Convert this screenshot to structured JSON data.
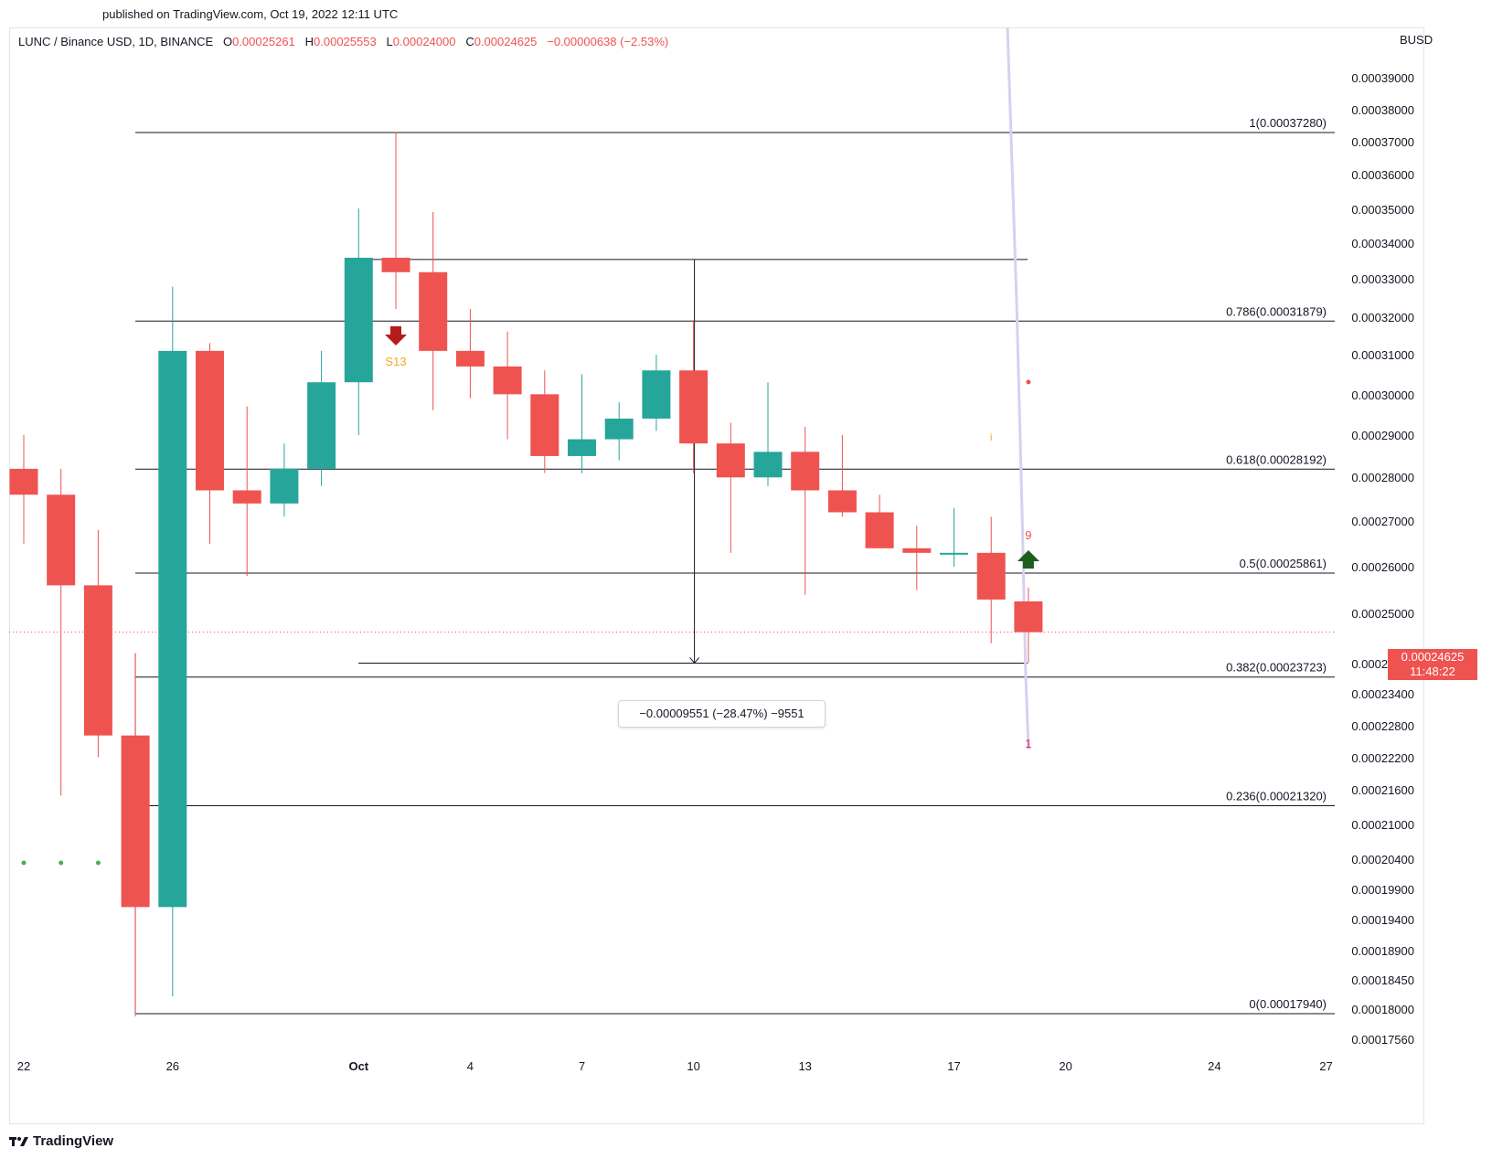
{
  "header": {
    "published": "published on TradingView.com, Oct 19, 2022 12:11 UTC",
    "symbol": "LUNC / Binance USD, 1D, BINANCE",
    "ohlc": {
      "o_label": "O",
      "o": "0.00025261",
      "h_label": "H",
      "h": "0.00025553",
      "l_label": "L",
      "l": "0.00024000",
      "c_label": "C",
      "c": "0.00024625",
      "change": "−0.00000638 (−2.53%)"
    },
    "currency": "BUSD"
  },
  "footer": {
    "brand": "TradingView"
  },
  "price_tag": {
    "price": "0.00024625",
    "countdown": "11:48:22"
  },
  "measure": {
    "label": "−0.00009551 (−28.47%) −9551"
  },
  "markers": {
    "sell_label": "S13",
    "count_9": "9",
    "count_1": "1",
    "count_i": "i"
  },
  "colors": {
    "up": "#26a69a",
    "down": "#ef5350",
    "fib_line": "#131722",
    "dot": "#4caf50",
    "sell_arrow": "#b71c1c",
    "buy_arrow": "#1b5e20",
    "orange": "#f5a623",
    "lavender": "#d8d0f0"
  },
  "chart_data": {
    "type": "candlestick",
    "y_scale": "log",
    "y_ticks": [
      "0.00039000",
      "0.00038000",
      "0.00037000",
      "0.00036000",
      "0.00035000",
      "0.00034000",
      "0.00033000",
      "0.00032000",
      "0.00031000",
      "0.00030000",
      "0.00029000",
      "0.00028000",
      "0.00027000",
      "0.00026000",
      "0.00025000",
      "0.00024000",
      "0.00023400",
      "0.00022800",
      "0.00022200",
      "0.00021600",
      "0.00021000",
      "0.00020400",
      "0.00019900",
      "0.00019400",
      "0.00018900",
      "0.00018450",
      "0.00018000",
      "0.00017560"
    ],
    "x_ticks": [
      {
        "label": "22",
        "date": "2022-09-22"
      },
      {
        "label": "26",
        "date": "2022-09-26"
      },
      {
        "label": "Oct",
        "date": "2022-10-01"
      },
      {
        "label": "4",
        "date": "2022-10-04"
      },
      {
        "label": "7",
        "date": "2022-10-07"
      },
      {
        "label": "10",
        "date": "2022-10-10"
      },
      {
        "label": "13",
        "date": "2022-10-13"
      },
      {
        "label": "17",
        "date": "2022-10-17"
      },
      {
        "label": "20",
        "date": "2022-10-20"
      },
      {
        "label": "24",
        "date": "2022-10-24"
      },
      {
        "label": "27",
        "date": "2022-10-27"
      }
    ],
    "candles": [
      {
        "date": "2022-09-22",
        "o": 0.000282,
        "h": 0.00029,
        "l": 0.000265,
        "c": 0.000276
      },
      {
        "date": "2022-09-23",
        "o": 0.000276,
        "h": 0.000282,
        "l": 0.000215,
        "c": 0.000256
      },
      {
        "date": "2022-09-24",
        "o": 0.000256,
        "h": 0.000268,
        "l": 0.000222,
        "c": 0.000226
      },
      {
        "date": "2022-09-25",
        "o": 0.000226,
        "h": 0.000242,
        "l": 0.000179,
        "c": 0.000196
      },
      {
        "date": "2022-09-26",
        "o": 0.000196,
        "h": 0.000328,
        "l": 0.000182,
        "c": 0.000311
      },
      {
        "date": "2022-09-27",
        "o": 0.000311,
        "h": 0.000313,
        "l": 0.000265,
        "c": 0.000277
      },
      {
        "date": "2022-09-28",
        "o": 0.000277,
        "h": 0.000297,
        "l": 0.000258,
        "c": 0.000274
      },
      {
        "date": "2022-09-29",
        "o": 0.000274,
        "h": 0.000288,
        "l": 0.000271,
        "c": 0.000282
      },
      {
        "date": "2022-09-30",
        "o": 0.000282,
        "h": 0.000311,
        "l": 0.000278,
        "c": 0.000303
      },
      {
        "date": "2022-10-01",
        "o": 0.000303,
        "h": 0.00035,
        "l": 0.00029,
        "c": 0.000336
      },
      {
        "date": "2022-10-02",
        "o": 0.000336,
        "h": 0.000373,
        "l": 0.000322,
        "c": 0.000332
      },
      {
        "date": "2022-10-03",
        "o": 0.000332,
        "h": 0.000349,
        "l": 0.000296,
        "c": 0.000311
      },
      {
        "date": "2022-10-04",
        "o": 0.000311,
        "h": 0.000322,
        "l": 0.000299,
        "c": 0.000307
      },
      {
        "date": "2022-10-05",
        "o": 0.000307,
        "h": 0.000316,
        "l": 0.000289,
        "c": 0.0003
      },
      {
        "date": "2022-10-06",
        "o": 0.0003,
        "h": 0.000306,
        "l": 0.000281,
        "c": 0.000285
      },
      {
        "date": "2022-10-07",
        "o": 0.000285,
        "h": 0.000305,
        "l": 0.000281,
        "c": 0.000289
      },
      {
        "date": "2022-10-08",
        "o": 0.000289,
        "h": 0.000298,
        "l": 0.000284,
        "c": 0.000294
      },
      {
        "date": "2022-10-09",
        "o": 0.000294,
        "h": 0.00031,
        "l": 0.000291,
        "c": 0.000306
      },
      {
        "date": "2022-10-10",
        "o": 0.000306,
        "h": 0.000319,
        "l": 0.000281,
        "c": 0.000288
      },
      {
        "date": "2022-10-11",
        "o": 0.000288,
        "h": 0.000293,
        "l": 0.000263,
        "c": 0.00028
      },
      {
        "date": "2022-10-12",
        "o": 0.00028,
        "h": 0.000303,
        "l": 0.000278,
        "c": 0.000286
      },
      {
        "date": "2022-10-13",
        "o": 0.000286,
        "h": 0.000292,
        "l": 0.000254,
        "c": 0.000277
      },
      {
        "date": "2022-10-14",
        "o": 0.000277,
        "h": 0.00029,
        "l": 0.000271,
        "c": 0.000272
      },
      {
        "date": "2022-10-15",
        "o": 0.000272,
        "h": 0.000276,
        "l": 0.000264,
        "c": 0.000264
      },
      {
        "date": "2022-10-16",
        "o": 0.000264,
        "h": 0.000269,
        "l": 0.000255,
        "c": 0.000263
      },
      {
        "date": "2022-10-17",
        "o": 0.000263,
        "h": 0.000273,
        "l": 0.00026,
        "c": 0.000263
      },
      {
        "date": "2022-10-18",
        "o": 0.000263,
        "h": 0.000271,
        "l": 0.000244,
        "c": 0.000253
      },
      {
        "date": "2022-10-19",
        "o": 0.00025261,
        "h": 0.00025553,
        "l": 0.00024,
        "c": 0.00024625
      }
    ],
    "fib_levels": [
      {
        "ratio": "1",
        "price": 0.0003728,
        "label": "1(0.00037280)"
      },
      {
        "ratio": "0.786",
        "price": 0.00031879,
        "label": "0.786(0.00031879)"
      },
      {
        "ratio": "0.618",
        "price": 0.00028192,
        "label": "0.618(0.00028192)"
      },
      {
        "ratio": "0.5",
        "price": 0.00025861,
        "label": "0.5(0.00025861)"
      },
      {
        "ratio": "0.382",
        "price": 0.00023723,
        "label": "0.382(0.00023723)"
      },
      {
        "ratio": "0.236",
        "price": 0.0002132,
        "label": "0.236(0.00021320)"
      },
      {
        "ratio": "0",
        "price": 0.0001794,
        "label": "0(0.00017940)"
      }
    ],
    "measure_range": {
      "from_date": "2022-10-10",
      "from_price": 0.00033551,
      "to_price": 0.00024
    },
    "current_price": 0.00024625
  }
}
